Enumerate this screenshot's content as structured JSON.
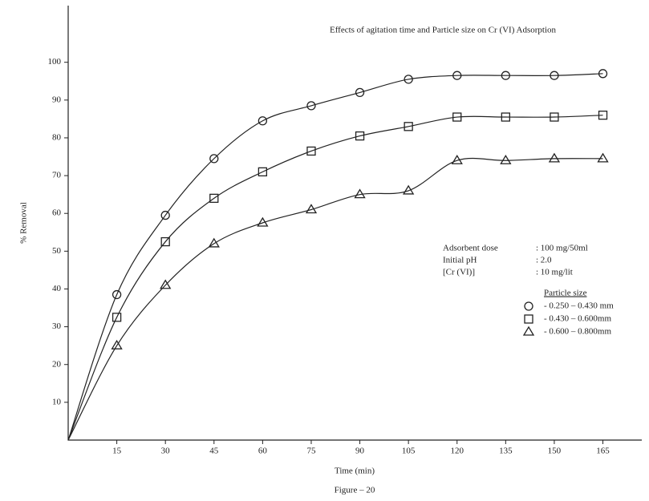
{
  "chart_data": {
    "type": "line",
    "title": "Effects of agitation time and Particle size on Cr (VI) Adsorption",
    "x_label": "Time (min)",
    "y_label": "% Removal",
    "caption": "Figure – 20",
    "x": [
      0,
      15,
      30,
      45,
      60,
      75,
      90,
      105,
      120,
      135,
      150,
      165
    ],
    "series": [
      {
        "name": "- 0.250 – 0.430 mm",
        "color": "#222222",
        "marker": "circle",
        "values": [
          0,
          38.5,
          59.5,
          74.5,
          84.5,
          88.5,
          92,
          95.5,
          96.5,
          96.5,
          96.5,
          97
        ]
      },
      {
        "name": "- 0.430 – 0.600mm",
        "color": "#222222",
        "marker": "square",
        "values": [
          0,
          32.5,
          52.5,
          64,
          71,
          76.5,
          80.5,
          83,
          85.5,
          85.5,
          85.5,
          86
        ]
      },
      {
        "name": "- 0.600 – 0.800mm",
        "color": "#222222",
        "marker": "triangle",
        "values": [
          0,
          25,
          41,
          52,
          57.5,
          61,
          65,
          66,
          74,
          74,
          74.5,
          74.5
        ]
      }
    ],
    "legend_title": "Particle size",
    "conditions": [
      {
        "label": "Adsorbent dose",
        "value": ": 100 mg/50ml"
      },
      {
        "label": "Initial pH",
        "value": ": 2.0"
      },
      {
        "label": "[Cr (VI)]",
        "value": ": 10 mg/lit"
      }
    ],
    "xlim": [
      0,
      177
    ],
    "ylim": [
      0,
      115
    ],
    "xticks": [
      15,
      30,
      45,
      60,
      75,
      90,
      105,
      120,
      135,
      150,
      165
    ],
    "yticks": [
      10,
      20,
      30,
      40,
      50,
      60,
      70,
      80,
      90,
      100
    ]
  }
}
